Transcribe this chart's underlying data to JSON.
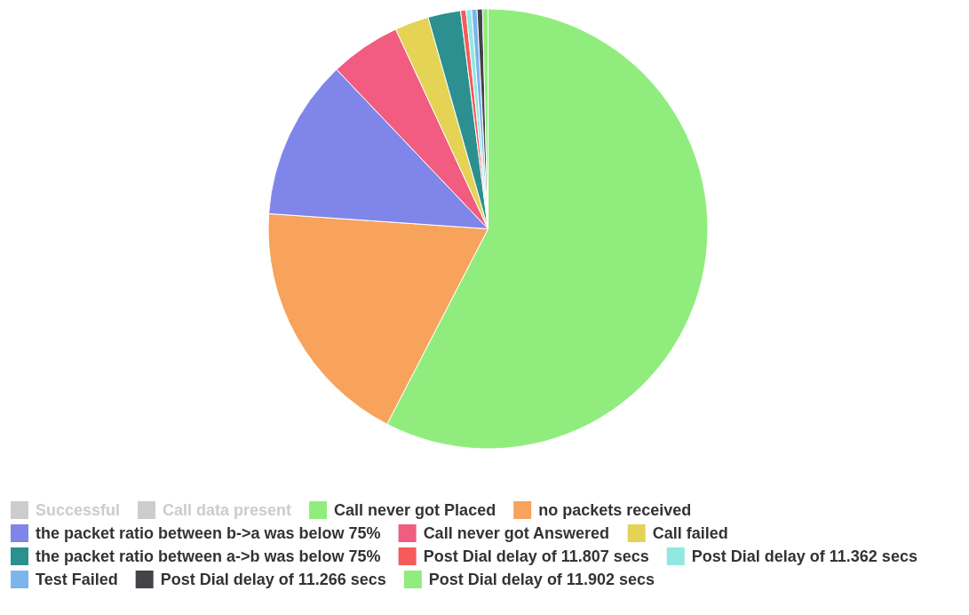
{
  "chart_data": {
    "type": "pie",
    "categories": [
      "Successful",
      "Call data present",
      "Call never got Placed",
      "no packets received",
      "the packet ratio between b->a was below 75%",
      "Call never got Answered",
      "Call failed",
      "the packet ratio between a->b was below 75%",
      "Post Dial delay of 11.807 secs",
      "Post Dial delay of 11.362 secs",
      "Test Failed",
      "Post Dial delay of 11.266 secs",
      "Post Dial delay of 11.902 secs"
    ],
    "values": [
      null,
      null,
      57.6,
      18.5,
      11.8,
      5.2,
      2.5,
      2.4,
      0.4,
      0.4,
      0.4,
      0.4,
      0.4
    ],
    "colors": [
      "#cccccc",
      "#cccccc",
      "#90ed7d",
      "#f7a35c",
      "#8085e9",
      "#f15c80",
      "#e4d354",
      "#2b908f",
      "#f45b5b",
      "#91e8e1",
      "#7cb5ec",
      "#434348",
      "#90ed7d"
    ],
    "legend": "bottom"
  }
}
